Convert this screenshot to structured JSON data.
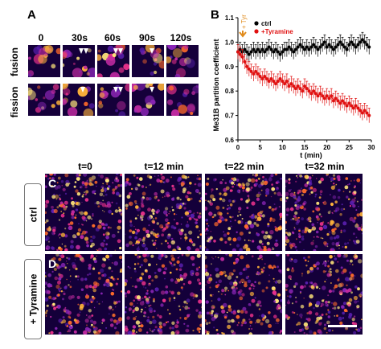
{
  "panel_a": {
    "label": "A",
    "time_labels": [
      "0",
      "30s",
      "60s",
      "90s",
      "120s"
    ],
    "row_labels": [
      "fusion",
      "fission"
    ]
  },
  "panel_b": {
    "label": "B",
    "annotation": "+ Tyr",
    "legend": [
      "ctrl",
      "+Tyramine"
    ],
    "colors": {
      "ctrl": "#000000",
      "tyramine": "#e01010",
      "annotation": "#e08a1a"
    }
  },
  "panel_c": {
    "label": "C",
    "row_label": "ctrl",
    "time_labels": [
      "t=0",
      "t=12 min",
      "t=22 min",
      "t=32 min"
    ]
  },
  "panel_d": {
    "label": "D",
    "row_label": "+ Tyramine"
  },
  "chart_data": {
    "type": "scatter",
    "xlabel": "t (min)",
    "ylabel": "Me31B partition coefficient",
    "xlim": [
      0,
      30
    ],
    "ylim": [
      0.6,
      1.1
    ],
    "xticks": [
      0,
      5,
      10,
      15,
      20,
      25,
      30
    ],
    "yticks": [
      0.6,
      0.7,
      0.8,
      0.9,
      1.0,
      1.1
    ],
    "x": [
      0,
      0.5,
      1,
      1.5,
      2,
      2.5,
      3,
      3.5,
      4,
      4.5,
      5,
      5.5,
      6,
      6.5,
      7,
      7.5,
      8,
      8.5,
      9,
      9.5,
      10,
      10.5,
      11,
      11.5,
      12,
      12.5,
      13,
      13.5,
      14,
      14.5,
      15,
      15.5,
      16,
      16.5,
      17,
      17.5,
      18,
      18.5,
      19,
      19.5,
      20,
      20.5,
      21,
      21.5,
      22,
      22.5,
      23,
      23.5,
      24,
      24.5,
      25,
      25.5,
      26,
      26.5,
      27,
      27.5,
      28,
      28.5,
      29,
      29.5
    ],
    "series": [
      {
        "name": "ctrl",
        "values": [
          0.96,
          0.97,
          0.96,
          0.97,
          0.96,
          0.95,
          0.96,
          0.97,
          0.96,
          0.97,
          0.96,
          0.97,
          0.96,
          0.97,
          0.98,
          0.97,
          0.96,
          0.97,
          0.96,
          0.95,
          0.96,
          0.97,
          0.97,
          0.98,
          0.97,
          0.96,
          0.97,
          0.98,
          0.99,
          0.98,
          0.97,
          0.98,
          0.97,
          0.98,
          0.99,
          0.98,
          0.97,
          0.98,
          0.99,
          1.0,
          0.98,
          0.99,
          0.98,
          0.97,
          0.98,
          0.99,
          1.0,
          0.99,
          0.98,
          0.97,
          0.99,
          1.0,
          0.99,
          0.98,
          0.99,
          1.0,
          1.01,
          1.0,
          0.99,
          0.98
        ],
        "error": 0.03
      },
      {
        "name": "+Tyramine",
        "values": [
          0.96,
          0.95,
          0.94,
          0.92,
          0.9,
          0.89,
          0.88,
          0.87,
          0.88,
          0.87,
          0.86,
          0.85,
          0.86,
          0.85,
          0.84,
          0.85,
          0.84,
          0.83,
          0.84,
          0.85,
          0.84,
          0.83,
          0.84,
          0.82,
          0.83,
          0.82,
          0.81,
          0.82,
          0.81,
          0.8,
          0.82,
          0.81,
          0.8,
          0.79,
          0.8,
          0.79,
          0.78,
          0.79,
          0.78,
          0.77,
          0.78,
          0.77,
          0.78,
          0.76,
          0.77,
          0.76,
          0.75,
          0.76,
          0.75,
          0.74,
          0.75,
          0.74,
          0.73,
          0.74,
          0.73,
          0.72,
          0.71,
          0.72,
          0.71,
          0.7
        ],
        "error": 0.03
      }
    ]
  }
}
